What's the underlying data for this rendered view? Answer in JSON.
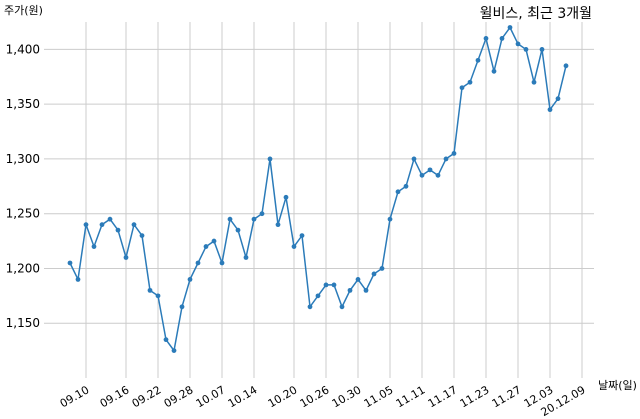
{
  "chart_data": {
    "type": "line",
    "title": "윌비스, 최근 3개월",
    "xlabel": "날짜(일)",
    "ylabel": "주가(원)",
    "ylim": [
      1100,
      1425
    ],
    "yticks": [
      1150,
      1200,
      1250,
      1300,
      1350,
      1400
    ],
    "ytick_labels": [
      "1,150",
      "1,200",
      "1,250",
      "1,300",
      "1,350",
      "1,400"
    ],
    "xtick_labels": [
      "09.10",
      "09.16",
      "09.22",
      "09.28",
      "10.07",
      "10.14",
      "10.20",
      "10.26",
      "10.30",
      "11.05",
      "11.11",
      "11.17",
      "11.23",
      "11.27",
      "12.03",
      "20.12.09"
    ],
    "xtick_index": [
      2,
      7,
      11,
      15,
      19,
      23,
      28,
      32,
      36,
      40,
      44,
      48,
      52,
      56,
      60,
      64
    ],
    "grid": true,
    "line_color": "#2b7bb9",
    "series": [
      {
        "values": [
          1205,
          1190,
          1240,
          1220,
          1240,
          1245,
          1235,
          1210,
          1240,
          1230,
          1180,
          1175,
          1135,
          1125,
          1165,
          1190,
          1205,
          1220,
          1225,
          1205,
          1245,
          1235,
          1210,
          1245,
          1250,
          1300,
          1240,
          1265,
          1220,
          1230,
          1165,
          1175,
          1185,
          1185,
          1165,
          1180,
          1190,
          1180,
          1195,
          1200,
          1245,
          1270,
          1275,
          1300,
          1285,
          1290,
          1285,
          1300,
          1305,
          1365,
          1370,
          1390,
          1410,
          1380,
          1410,
          1420,
          1405,
          1400,
          1370,
          1400,
          1345,
          1355,
          1385
        ]
      }
    ]
  }
}
